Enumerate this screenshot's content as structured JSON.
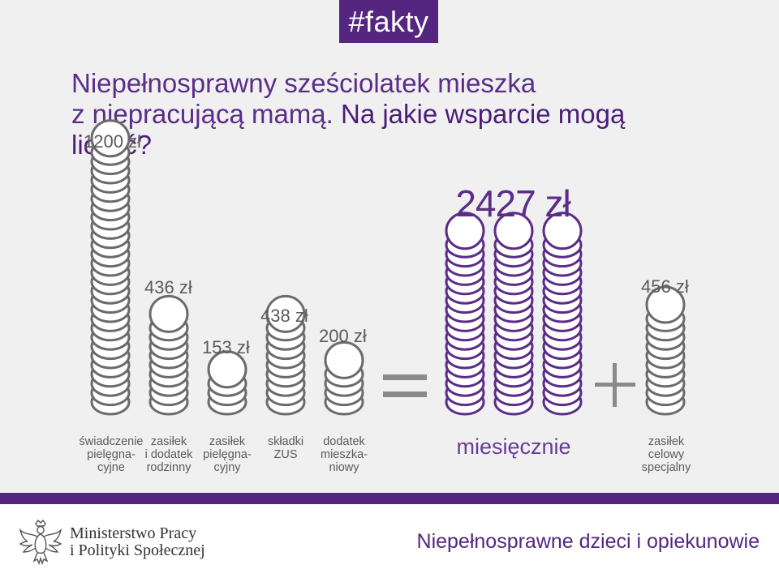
{
  "tag": "#fakty",
  "title": {
    "line1": "Niepełnosprawny sześciolatek mieszka",
    "line2_part1": "z niepracującą mamą. ",
    "line2_part2": "Na jakie wsparcie mogą liczyć?"
  },
  "benefits": [
    {
      "amount": 1200,
      "label": "1200 zł",
      "caption": "świadczenie\npielęgna-\ncyjne"
    },
    {
      "amount": 436,
      "label": "436 zł",
      "caption": "zasiłek\ni dodatek\nrodzinny"
    },
    {
      "amount": 153,
      "label": "153 zł",
      "caption": "zasiłek\npielęgna-\ncyjny"
    },
    {
      "amount": 438,
      "label": "438 zł",
      "caption": "składki\nZUS"
    },
    {
      "amount": 200,
      "label": "200 zł",
      "caption": "dodatek\nmieszka-\nniowy"
    }
  ],
  "total": {
    "amount": 2427,
    "label": "2427 zł",
    "caption": "miesięcznie"
  },
  "extra": {
    "amount": 456,
    "label": "456 zł",
    "caption": "zasiłek\ncelowy\nspecjalny"
  },
  "colors": {
    "accent": "#55267f",
    "coin_gray": "#6b6b6b",
    "coin_purple": "#5b2d88"
  },
  "footer": {
    "ministry_line1": "Ministerstwo Pracy",
    "ministry_line2": "i Polityki Społecznej",
    "topic": "Niepełnosprawne dzieci i opiekunowie",
    "logo_icon": "polish-eagle-emblem-icon"
  }
}
